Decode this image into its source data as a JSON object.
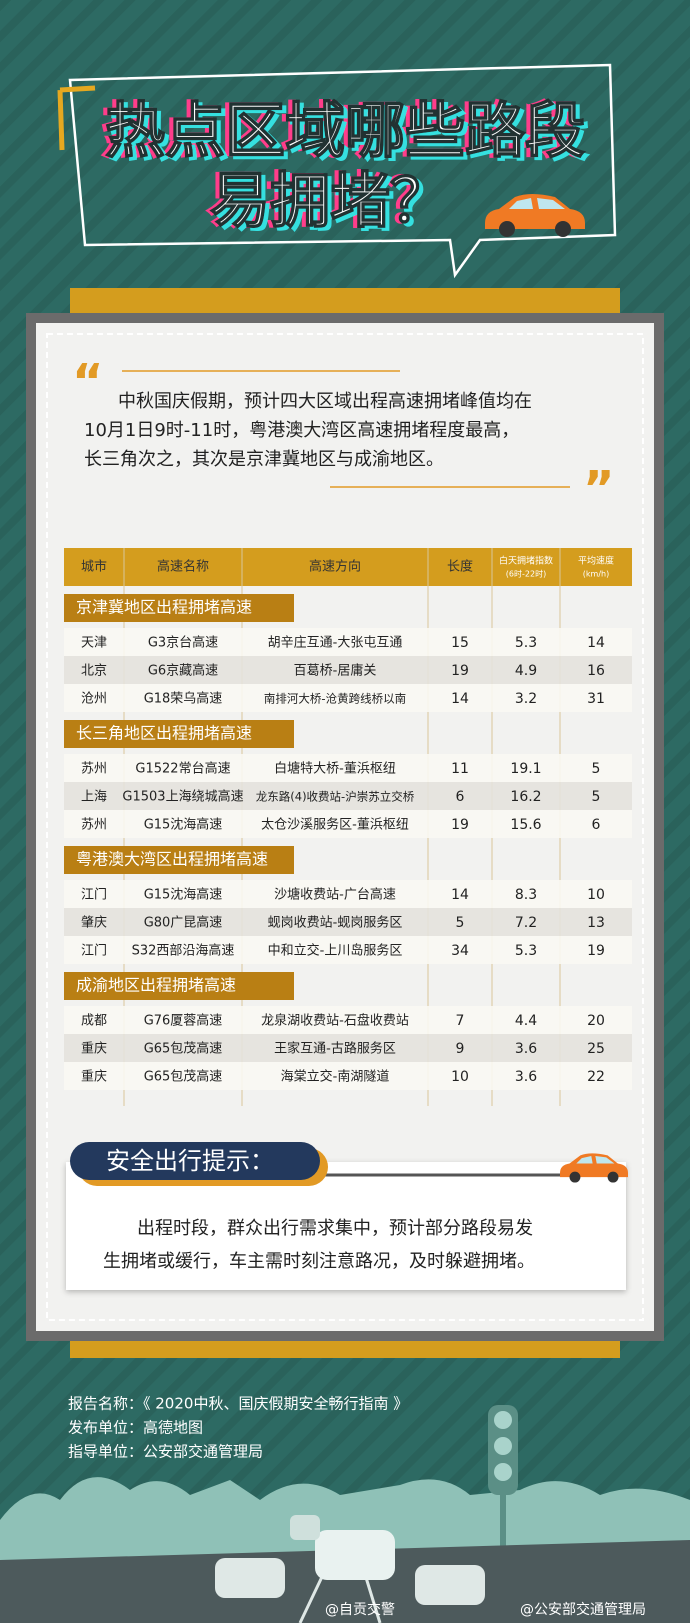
{
  "title": [
    "热点区域哪些路段",
    "易拥堵？"
  ],
  "intro": [
    "中秋国庆假期，预计四大区域出程高速拥堵峰值均在",
    "10月1日9时-11时，粤港澳大湾区高速拥堵程度最高，",
    "长三角次之，其次是京津冀地区与成渝地区。"
  ],
  "table": {
    "headers": [
      {
        "text": "城市"
      },
      {
        "text": "高速名称"
      },
      {
        "text": "高速方向"
      },
      {
        "text": "长度"
      },
      {
        "text": "白天拥堵指数",
        "sub": "(6时-22时)"
      },
      {
        "text": "平均速度",
        "sub": "(km/h)"
      }
    ],
    "sections": [
      {
        "title": "京津冀地区出程拥堵高速",
        "rows": [
          [
            "天津",
            "G3京台高速",
            "胡辛庄互通-大张屯互通",
            15,
            5.3,
            14
          ],
          [
            "北京",
            "G6京藏高速",
            "百葛桥-居庸关",
            19,
            4.9,
            16
          ],
          [
            "沧州",
            "G18荣乌高速",
            "南排河大桥-沧黄跨线桥以南",
            14,
            3.2,
            31
          ]
        ]
      },
      {
        "title": "长三角地区出程拥堵高速",
        "rows": [
          [
            "苏州",
            "G1522常台高速",
            "白塘特大桥-董浜枢纽",
            11,
            19.1,
            5
          ],
          [
            "上海",
            "G1503上海绕城高速",
            "龙东路(4)收费站-沪崇苏立交桥",
            6,
            16.2,
            5
          ],
          [
            "苏州",
            "G15沈海高速",
            "太仓沙溪服务区-董浜枢纽",
            19,
            15.6,
            6
          ]
        ]
      },
      {
        "title": "粤港澳大湾区出程拥堵高速",
        "rows": [
          [
            "江门",
            "G15沈海高速",
            "沙塘收费站-广台高速",
            14,
            8.3,
            10
          ],
          [
            "肇庆",
            "G80广昆高速",
            "蚬岗收费站-蚬岗服务区",
            5,
            7.2,
            13
          ],
          [
            "江门",
            "S32西部沿海高速",
            "中和立交-上川岛服务区",
            34,
            5.3,
            19
          ]
        ]
      },
      {
        "title": "成渝地区出程拥堵高速",
        "rows": [
          [
            "成都",
            "G76厦蓉高速",
            "龙泉湖收费站-石盘收费站",
            7,
            4.4,
            20
          ],
          [
            "重庆",
            "G65包茂高速",
            "王家互通-古路服务区",
            9,
            3.6,
            25
          ],
          [
            "重庆",
            "G65包茂高速",
            "海棠立交-南湖隧道",
            10,
            3.6,
            22
          ]
        ]
      }
    ]
  },
  "tip": {
    "title": "安全出行提示：",
    "text": [
      "出程时段，群众出行需求集中，预计部分路段易发",
      "生拥堵或缓行，车主需时刻注意路况，及时躲避拥堵。"
    ]
  },
  "footer": [
    "报告名称：《 2020中秋、国庆假期安全畅行指南 》",
    "发布单位：高德地图",
    "指导单位：公安部交通管理局"
  ],
  "watermarks": [
    "@自贡交警",
    "@公安部交通管理局"
  ]
}
